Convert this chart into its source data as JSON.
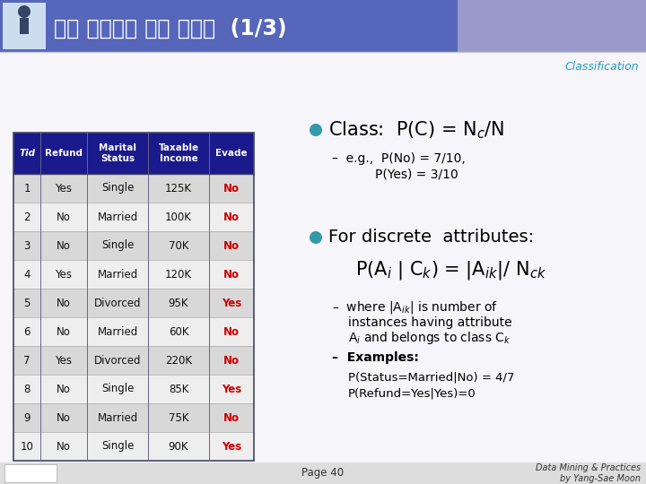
{
  "title": "훈련 집합에서 확률 구하기  (1/3)",
  "subtitle": "Classification",
  "bullet_color": "#3399aa",
  "text_color": "#000000",
  "table_header_bg": "#1a1a8c",
  "table_header_text": "#ffffff",
  "table_row_odd": "#d8d8d8",
  "table_row_even": "#eeeeee",
  "evade_color": "#cc0000",
  "col_headers": [
    "Tid",
    "Refund",
    "Marital\nStatus",
    "Taxable\nIncome",
    "Evade"
  ],
  "table_data": [
    [
      "1",
      "Yes",
      "Single",
      "125K",
      "No"
    ],
    [
      "2",
      "No",
      "Married",
      "100K",
      "No"
    ],
    [
      "3",
      "No",
      "Single",
      "70K",
      "No"
    ],
    [
      "4",
      "Yes",
      "Married",
      "120K",
      "No"
    ],
    [
      "5",
      "No",
      "Divorced",
      "95K",
      "Yes"
    ],
    [
      "6",
      "No",
      "Married",
      "60K",
      "No"
    ],
    [
      "7",
      "Yes",
      "Divorced",
      "220K",
      "No"
    ],
    [
      "8",
      "No",
      "Single",
      "85K",
      "Yes"
    ],
    [
      "9",
      "No",
      "Married",
      "75K",
      "No"
    ],
    [
      "10",
      "No",
      "Single",
      "90K",
      "Yes"
    ]
  ],
  "footer_page": "Page 40",
  "footer_right": "Data Mining & Practices\nby Yang-Sae Moon",
  "header_left_color": "#5566bb",
  "header_right_color": "#9999cc",
  "header_divider": 510,
  "slide_bg": "#f0f0f8"
}
